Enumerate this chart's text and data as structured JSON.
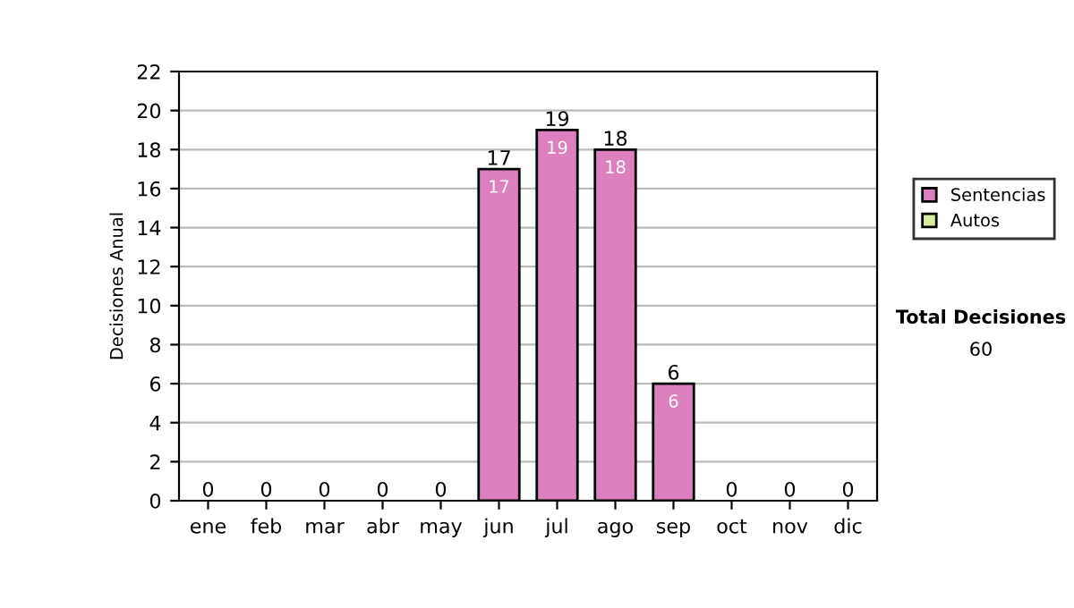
{
  "chart_data": {
    "type": "bar",
    "stacked": true,
    "ylabel": "Decisiones Anual",
    "categories": [
      "ene",
      "feb",
      "mar",
      "abr",
      "may",
      "jun",
      "jul",
      "ago",
      "sep",
      "oct",
      "nov",
      "dic"
    ],
    "series": [
      {
        "name": "Sentencias",
        "color": "#dd80c0",
        "values": [
          0,
          0,
          0,
          0,
          0,
          17,
          19,
          18,
          6,
          0,
          0,
          0
        ],
        "value_labels": [
          null,
          null,
          null,
          null,
          null,
          "17",
          "19",
          "18",
          "6",
          null,
          null,
          null
        ]
      },
      {
        "name": "Autos",
        "color": "#d8eca0",
        "values": [
          0,
          0,
          0,
          0,
          0,
          0,
          0,
          0,
          0,
          0,
          0,
          0
        ]
      }
    ],
    "totals": [
      "0",
      "0",
      "0",
      "0",
      "0",
      "17",
      "19",
      "18",
      "6",
      "0",
      "0",
      "0"
    ],
    "ylim": [
      0,
      22
    ],
    "yticks": [
      0,
      2,
      4,
      6,
      8,
      10,
      12,
      14,
      16,
      18,
      20,
      22
    ],
    "grid": "y",
    "legend": "right",
    "annotations": [
      "Total Decisiones",
      "60"
    ]
  }
}
